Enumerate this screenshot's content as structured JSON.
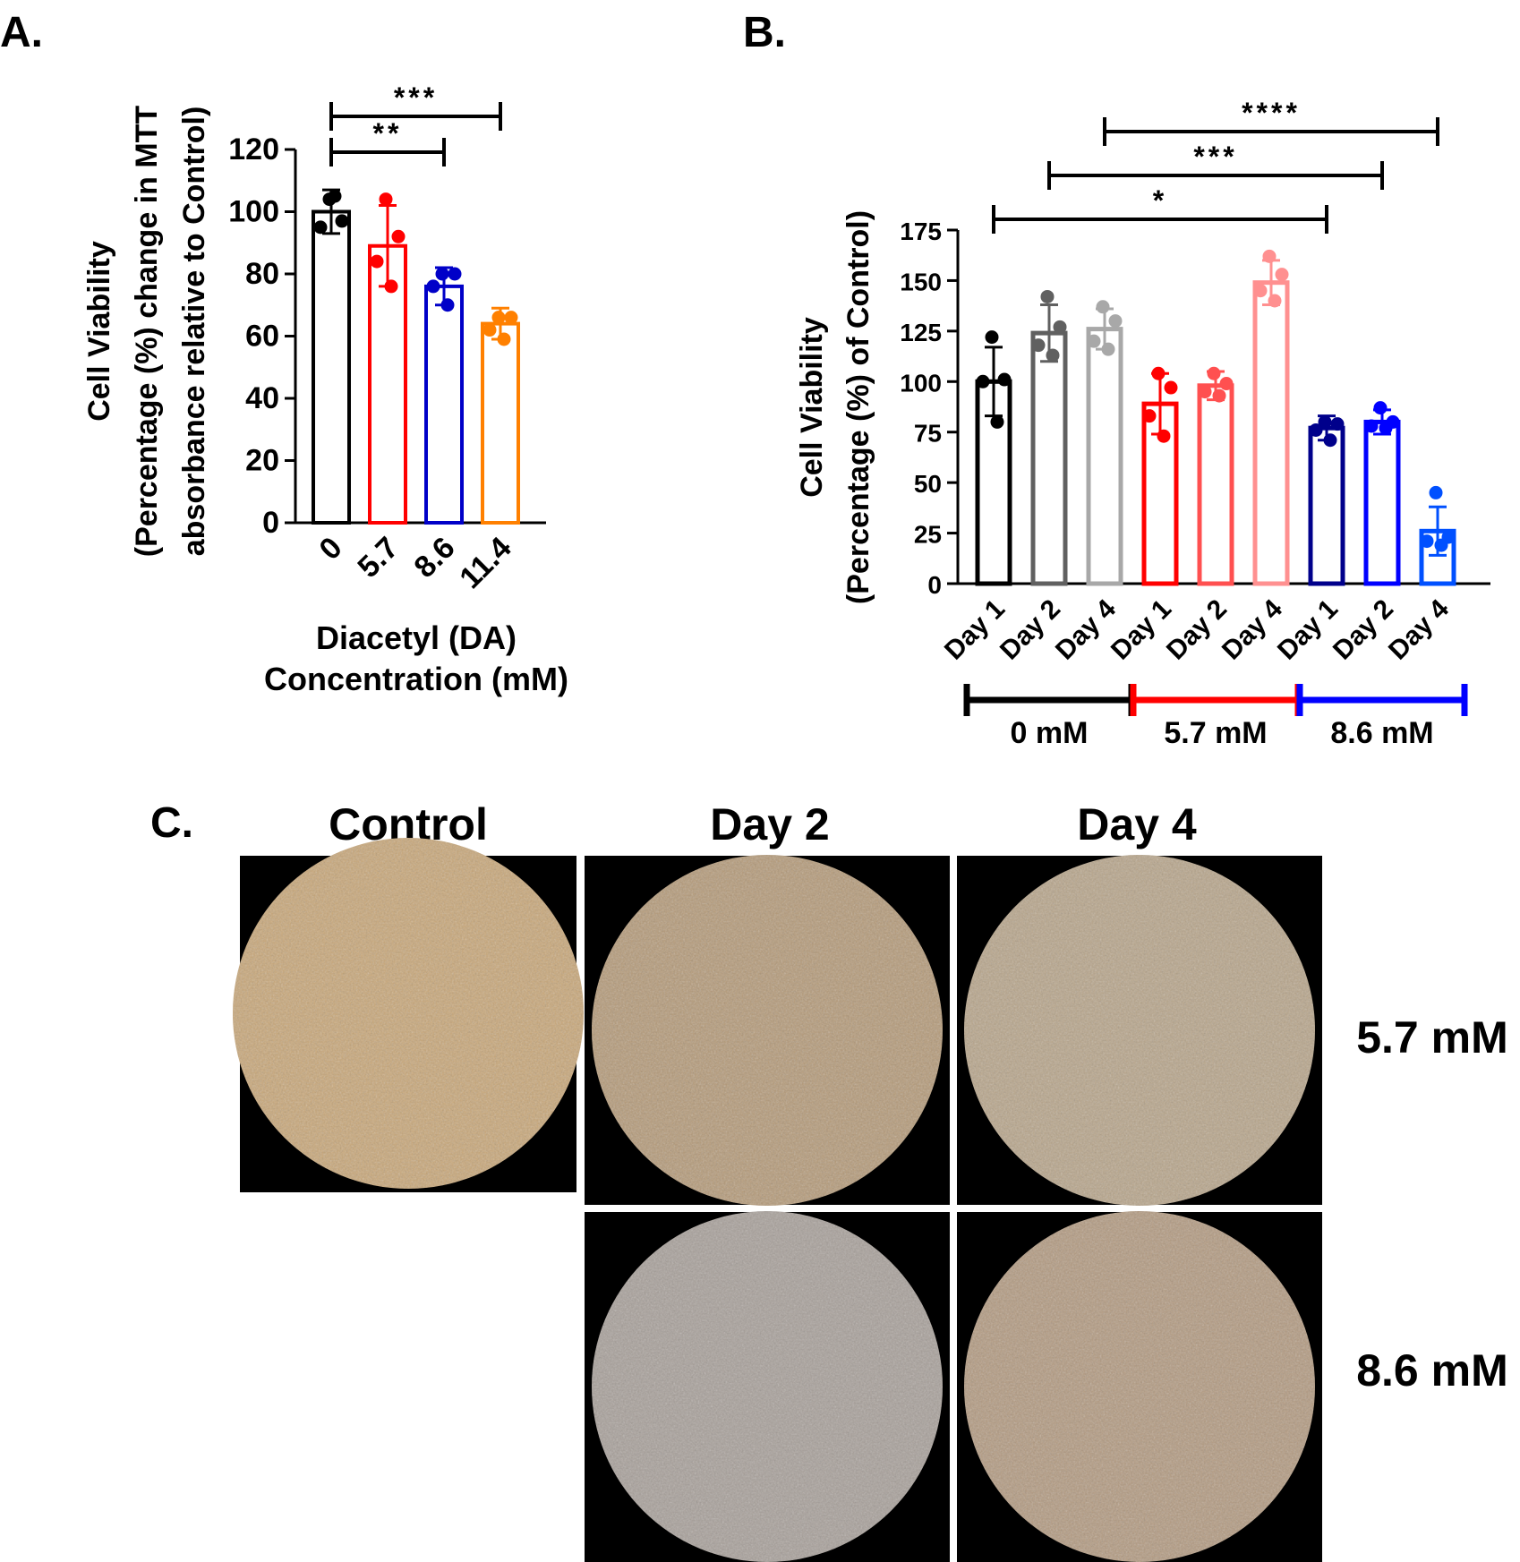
{
  "panels": {
    "a": {
      "letter": "A."
    },
    "b": {
      "letter": "B."
    },
    "c": {
      "letter": "C."
    }
  },
  "chart_data": [
    {
      "panel": "A.",
      "type": "bar",
      "ylabel_lines": [
        "Cell Viability",
        "(Percentage (%) change in MTT",
        "absorbance relative to Control)"
      ],
      "xlabel_lines": [
        "Diacetyl (DA)",
        "Concentration (mM)"
      ],
      "ylim": [
        0,
        120
      ],
      "yticks": [
        0,
        20,
        40,
        60,
        80,
        100,
        120
      ],
      "categories": [
        "0",
        "5.7",
        "8.6",
        "11.4"
      ],
      "values": [
        100,
        89,
        76,
        64
      ],
      "error_sd": [
        7,
        13,
        6,
        5
      ],
      "colors": [
        "#000000",
        "#ff0000",
        "#0000c8",
        "#ff8000"
      ],
      "points": [
        [
          104,
          97,
          95,
          105
        ],
        [
          104,
          92,
          84,
          76
        ],
        [
          80,
          80,
          76,
          70
        ],
        [
          66,
          66,
          62,
          59
        ]
      ],
      "significance": [
        {
          "from": 0,
          "to": 2,
          "label": "**"
        },
        {
          "from": 0,
          "to": 3,
          "label": "***"
        }
      ]
    },
    {
      "panel": "B.",
      "type": "bar",
      "ylabel_lines": [
        "Cell Viability",
        "(Percentage (%) of Control)"
      ],
      "ylim": [
        0,
        175
      ],
      "yticks": [
        0,
        25,
        50,
        75,
        100,
        125,
        150,
        175
      ],
      "categories": [
        "Day 1",
        "Day 2",
        "Day 4",
        "Day 1",
        "Day 2",
        "Day 4",
        "Day 1",
        "Day 2",
        "Day 4"
      ],
      "values": [
        100,
        124,
        126,
        89,
        98,
        149,
        77,
        80,
        26
      ],
      "error_sd": [
        17,
        14,
        10,
        15,
        7,
        11,
        6,
        6,
        12
      ],
      "colors": [
        "#000000",
        "#606060",
        "#a8a8a8",
        "#ff0000",
        "#ff5050",
        "#ff9090",
        "#00008b",
        "#0000ff",
        "#0050ff"
      ],
      "points": [
        [
          122,
          101,
          100,
          80
        ],
        [
          142,
          127,
          118,
          113
        ],
        [
          137,
          130,
          120,
          116
        ],
        [
          104,
          97,
          83,
          73
        ],
        [
          104,
          99,
          95,
          93
        ],
        [
          162,
          153,
          145,
          140
        ],
        [
          80,
          79,
          76,
          71
        ],
        [
          87,
          80,
          78,
          77
        ],
        [
          45,
          23,
          21,
          19
        ]
      ],
      "groups": [
        {
          "label": "0 mM",
          "from": 0,
          "to": 2,
          "color": "#000000"
        },
        {
          "label": "5.7 mM",
          "from": 3,
          "to": 5,
          "color": "#ff0000"
        },
        {
          "label": "8.6 mM",
          "from": 6,
          "to": 8,
          "color": "#0000ff"
        }
      ],
      "significance": [
        {
          "from": 0,
          "to": 6,
          "label": "*"
        },
        {
          "from": 1,
          "to": 7,
          "label": "***"
        },
        {
          "from": 2,
          "to": 8,
          "label": "****"
        }
      ]
    }
  ],
  "micrographs": {
    "column_titles": [
      "Control",
      "Day 2",
      "Day 4"
    ],
    "row_labels": [
      "5.7 mM",
      "8.6 mM"
    ],
    "images": [
      {
        "name": "control",
        "tint": "#c9a778"
      },
      {
        "name": "5.7-day2",
        "tint": "#b59a78"
      },
      {
        "name": "5.7-day4",
        "tint": "#b8a58a"
      },
      {
        "name": "8.6-day2",
        "tint": "#a8a09a"
      },
      {
        "name": "8.6-day4",
        "tint": "#b39a80"
      }
    ]
  }
}
